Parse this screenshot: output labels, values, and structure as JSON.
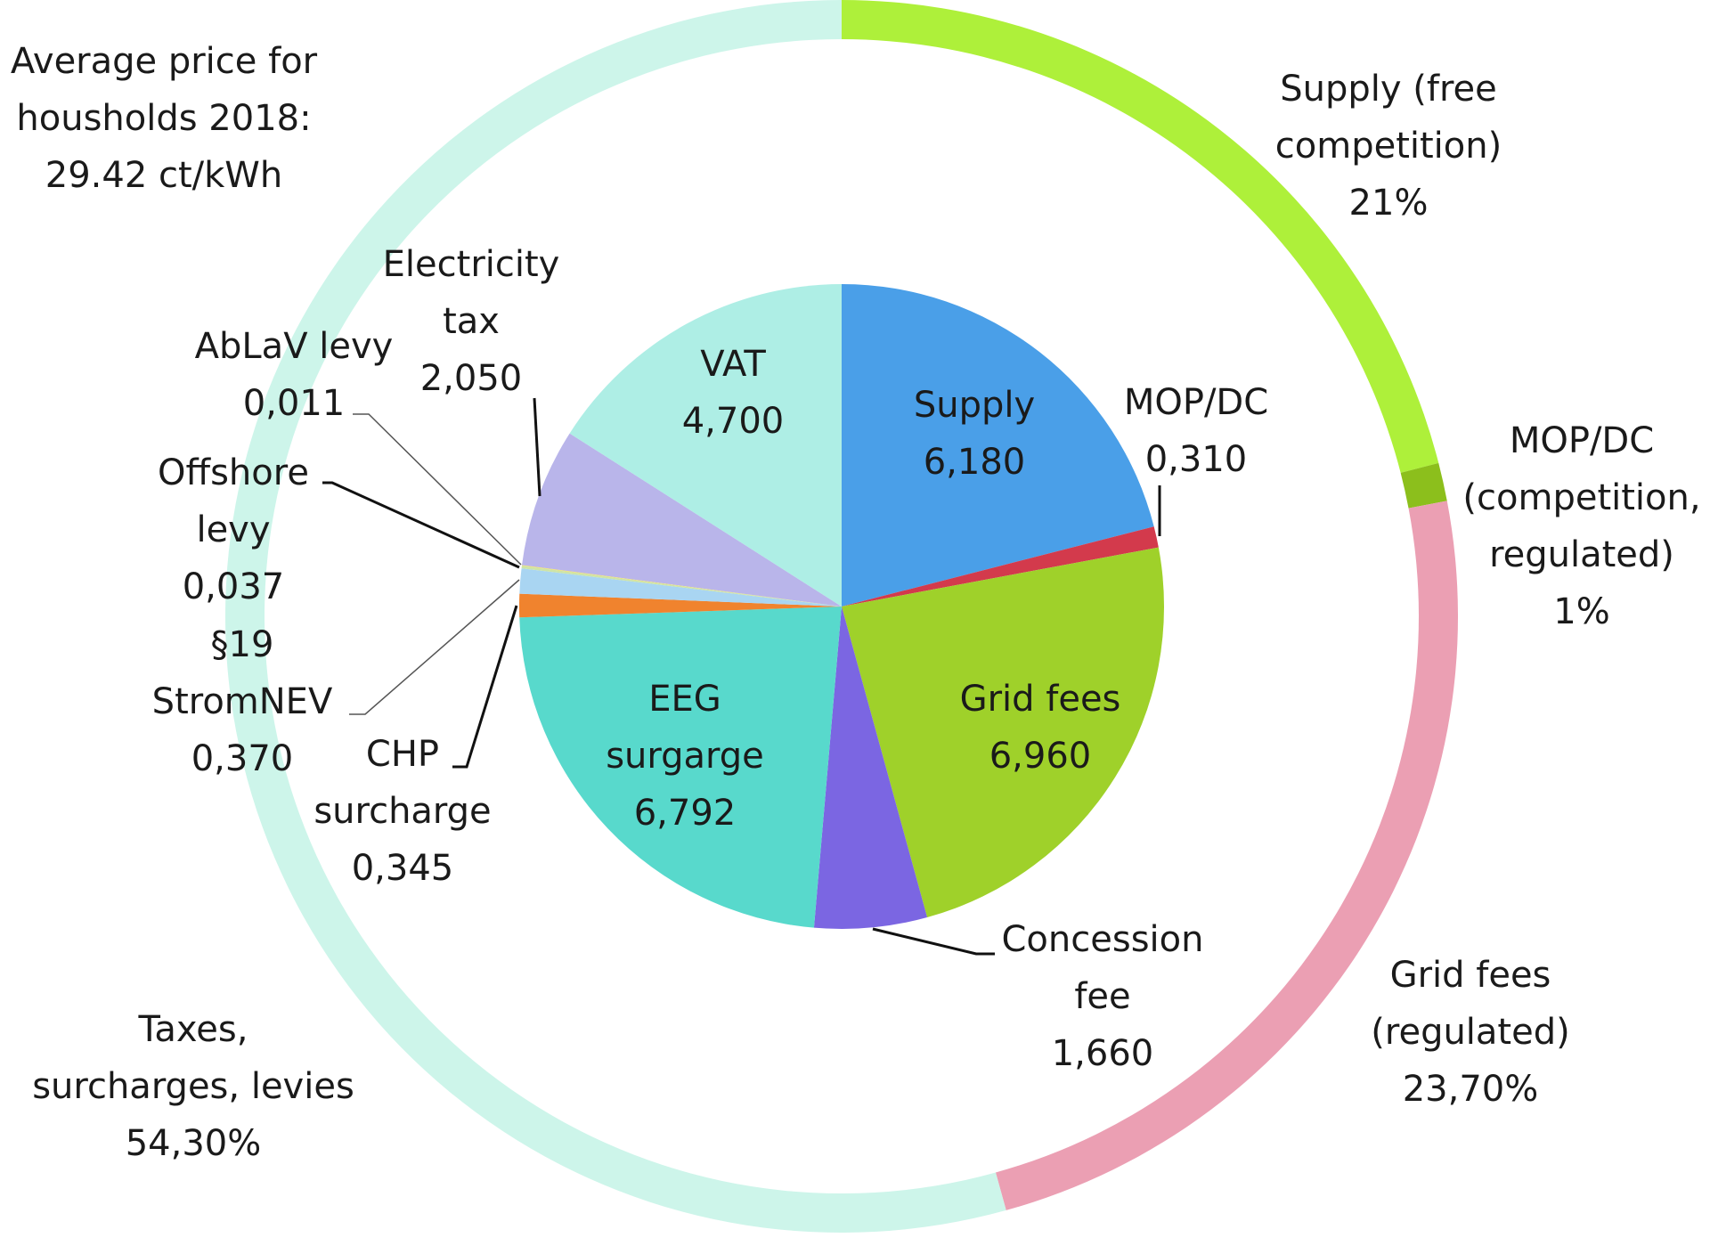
{
  "chart_data": {
    "type": "pie",
    "title_lines": [
      "Average price for",
      "housholds 2018:",
      "29.42 ct/kWh"
    ],
    "inner": {
      "unit": "ct/kWh",
      "slices": [
        {
          "label_lines": [
            "Supply",
            "6,180"
          ],
          "value": 6.18,
          "color": "#4a9fe8"
        },
        {
          "label_lines": [
            "MOP/DC",
            "0,310"
          ],
          "value": 0.31,
          "color": "#d33a4c"
        },
        {
          "label_lines": [
            "Grid fees",
            "6,960"
          ],
          "value": 6.96,
          "color": "#9fd12a"
        },
        {
          "label_lines": [
            "Concession",
            "fee",
            "1,660"
          ],
          "value": 1.66,
          "color": "#7b66e2"
        },
        {
          "label_lines": [
            "EEG",
            "surgarge",
            "6,792"
          ],
          "value": 6.792,
          "color": "#58d9cc"
        },
        {
          "label_lines": [
            "CHP",
            "surcharge",
            "0,345"
          ],
          "value": 0.345,
          "color": "#f0832e"
        },
        {
          "label_lines": [
            "§19",
            "StromNEV",
            "0,370"
          ],
          "value": 0.37,
          "color": "#a9d5f2"
        },
        {
          "label_lines": [
            "Offshore",
            "levy",
            "0,037"
          ],
          "value": 0.037,
          "color": "#cde4a8"
        },
        {
          "label_lines": [
            "AbLaV levy",
            "0,011"
          ],
          "value": 0.011,
          "color": "#f2e06a"
        },
        {
          "label_lines": [
            "Electricity",
            "tax",
            "2,050"
          ],
          "value": 2.05,
          "color": "#b9b5ea"
        },
        {
          "label_lines": [
            "VAT",
            "4,700"
          ],
          "value": 4.7,
          "color": "#aeeee5"
        }
      ]
    },
    "outer": {
      "unit": "%",
      "slices": [
        {
          "label_lines": [
            "Supply (free",
            "competition)",
            "21%"
          ],
          "value": 21,
          "color": "#aef03a"
        },
        {
          "label_lines": [
            "MOP/DC",
            "(competition,",
            "regulated)",
            "1%"
          ],
          "value": 1,
          "color": "#8cbf1c"
        },
        {
          "label_lines": [
            "Grid fees",
            "(regulated)",
            "23,70%"
          ],
          "value": 23.7,
          "color": "#eb9fb3"
        },
        {
          "label_lines": [
            "Taxes,",
            "surcharges, levies",
            "54,30%"
          ],
          "value": 54.3,
          "color": "#cdf5ea"
        }
      ]
    }
  }
}
